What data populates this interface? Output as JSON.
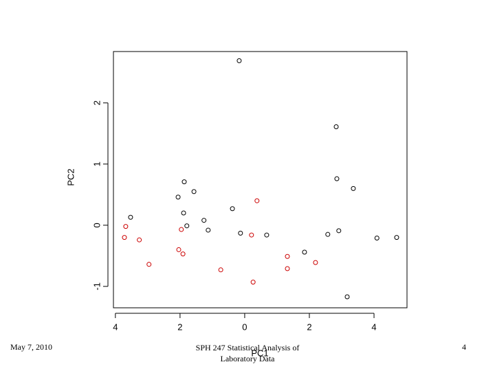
{
  "chart_data": {
    "type": "scatter",
    "xlabel": "PC1",
    "ylabel": "PC2",
    "xlim": [
      -4.06,
      5.02
    ],
    "ylim": [
      -1.35,
      2.84
    ],
    "xticks": [
      {
        "value": -4,
        "label": "4"
      },
      {
        "value": -2,
        "label": "2"
      },
      0,
      2,
      4
    ],
    "yticks": [
      -1,
      0,
      1,
      2
    ],
    "series": [
      {
        "color": "#000000",
        "x": [
          -0.17,
          2.83,
          2.85,
          3.36,
          -1.87,
          -1.57,
          -2.06,
          -1.89,
          -3.53,
          -1.26,
          -1.79,
          -0.38,
          -1.13,
          -0.13,
          0.68,
          2.91,
          2.57,
          1.85,
          4.09,
          4.7,
          3.17
        ],
        "values": [
          2.69,
          1.61,
          0.76,
          0.6,
          0.71,
          0.55,
          0.46,
          0.2,
          0.13,
          0.08,
          -0.01,
          0.27,
          -0.08,
          -0.13,
          -0.16,
          -0.09,
          -0.15,
          -0.44,
          -0.21,
          -0.2,
          -1.17
        ]
      },
      {
        "color": "#cc0000",
        "x": [
          -3.68,
          -3.72,
          -3.26,
          -1.96,
          -2.96,
          -2.04,
          -1.91,
          -0.74,
          0.21,
          0.38,
          0.26,
          1.32,
          1.32,
          2.19
        ],
        "values": [
          -0.02,
          -0.2,
          -0.24,
          -0.07,
          -0.64,
          -0.4,
          -0.47,
          -0.73,
          -0.16,
          0.4,
          -0.93,
          -0.51,
          -0.71,
          -0.61
        ]
      }
    ]
  },
  "footer": {
    "date": "May 7, 2010",
    "title": "SPH 247 Statistical Analysis of Laboratory Data",
    "page": "4"
  }
}
